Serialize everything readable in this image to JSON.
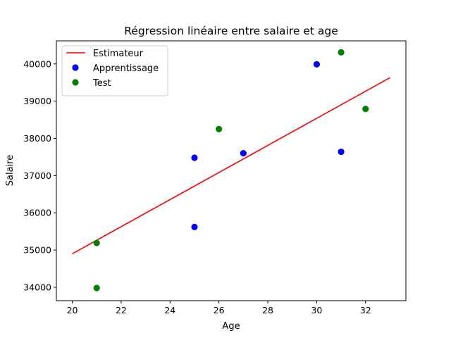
{
  "chart_data": {
    "type": "scatter",
    "title": "Régression linéaire entre salaire et age",
    "xlabel": "Age",
    "ylabel": "Salaire",
    "xlim": [
      19.35,
      33.65
    ],
    "ylim": [
      33640,
      40620
    ],
    "xticks": [
      20,
      22,
      24,
      26,
      28,
      30,
      32
    ],
    "yticks": [
      34000,
      35000,
      36000,
      37000,
      38000,
      39000,
      40000
    ],
    "grid": false,
    "legend_position": "top-left",
    "series": [
      {
        "name": "Estimateur",
        "kind": "line",
        "color": "#ff0000",
        "points": [
          [
            20,
            34900
          ],
          [
            33,
            39630
          ]
        ]
      },
      {
        "name": "Apprentissage",
        "kind": "scatter",
        "color": "#0000ff",
        "points": [
          [
            25,
            37480
          ],
          [
            25,
            35620
          ],
          [
            27,
            37600
          ],
          [
            30,
            39990
          ],
          [
            31,
            37640
          ]
        ]
      },
      {
        "name": "Test",
        "kind": "scatter",
        "color": "#008000",
        "points": [
          [
            21,
            35190
          ],
          [
            21,
            33980
          ],
          [
            26,
            38250
          ],
          [
            31,
            40310
          ],
          [
            32,
            38790
          ]
        ]
      }
    ]
  }
}
